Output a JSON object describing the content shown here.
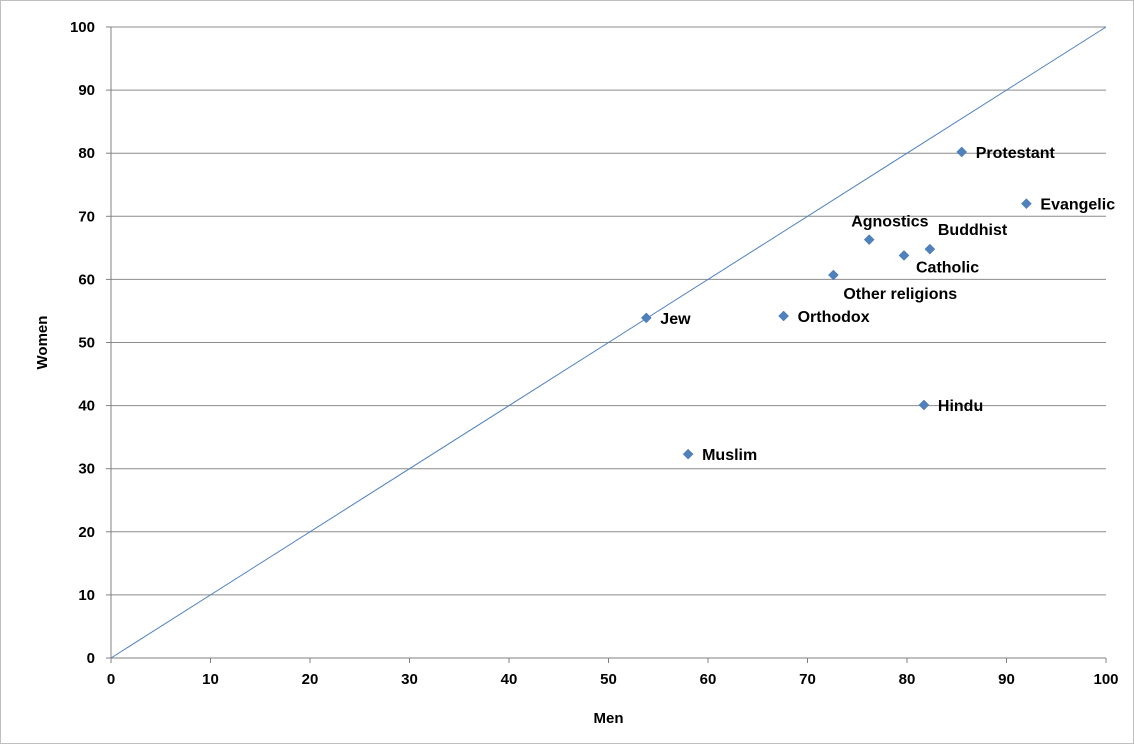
{
  "chart_data": {
    "type": "scatter",
    "title": "",
    "xlabel": "Men",
    "ylabel": "Women",
    "xlim": [
      0,
      100
    ],
    "ylim": [
      0,
      100
    ],
    "x_ticks": [
      "0",
      "10",
      "20",
      "30",
      "40",
      "50",
      "60",
      "70",
      "80",
      "90",
      "100"
    ],
    "y_ticks": [
      "0",
      "10",
      "20",
      "30",
      "40",
      "50",
      "60",
      "70",
      "80",
      "90",
      "100"
    ],
    "grid": "horizontal",
    "legend": "none",
    "reference_line": {
      "type": "diagonal",
      "from": [
        0,
        0
      ],
      "to": [
        100,
        100
      ]
    },
    "marker_color": "#4f81bd",
    "points": [
      {
        "label": "Protestant",
        "x": 85.5,
        "y": 80.2
      },
      {
        "label": "Evangelic",
        "x": 92.0,
        "y": 72.0
      },
      {
        "label": "Agnostics",
        "x": 76.2,
        "y": 66.3
      },
      {
        "label": "Buddhist",
        "x": 82.3,
        "y": 64.8
      },
      {
        "label": "Catholic",
        "x": 79.7,
        "y": 63.8
      },
      {
        "label": "Other religions",
        "x": 72.6,
        "y": 60.7
      },
      {
        "label": "Jew",
        "x": 53.8,
        "y": 53.9
      },
      {
        "label": "Orthodox",
        "x": 67.6,
        "y": 54.2
      },
      {
        "label": "Hindu",
        "x": 81.7,
        "y": 40.1
      },
      {
        "label": "Muslim",
        "x": 58.0,
        "y": 32.3
      }
    ]
  }
}
